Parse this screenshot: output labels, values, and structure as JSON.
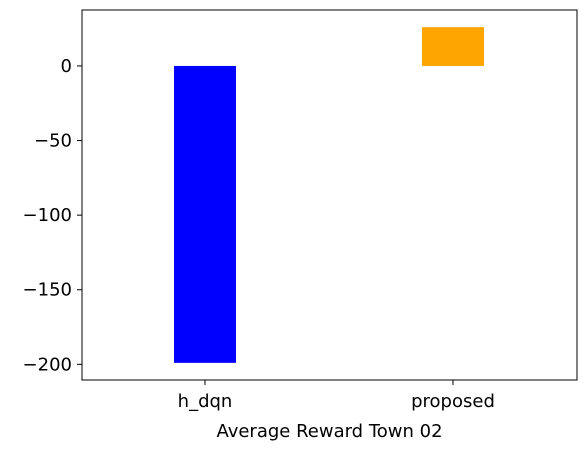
{
  "chart_data": {
    "type": "bar",
    "title": "",
    "xlabel": "Average Reward Town 02",
    "ylabel": "",
    "categories": [
      "h_dqn",
      "proposed"
    ],
    "values": [
      -199,
      26
    ],
    "colors": [
      "#0000ff",
      "#ffa500"
    ],
    "ylim": [
      -210.5,
      37.5
    ],
    "yticks": [
      0,
      -50,
      -100,
      -150,
      -200
    ],
    "ytick_labels": [
      "0",
      "−50",
      "−100",
      "−150",
      "−200"
    ],
    "grid": false,
    "legend": "none"
  }
}
